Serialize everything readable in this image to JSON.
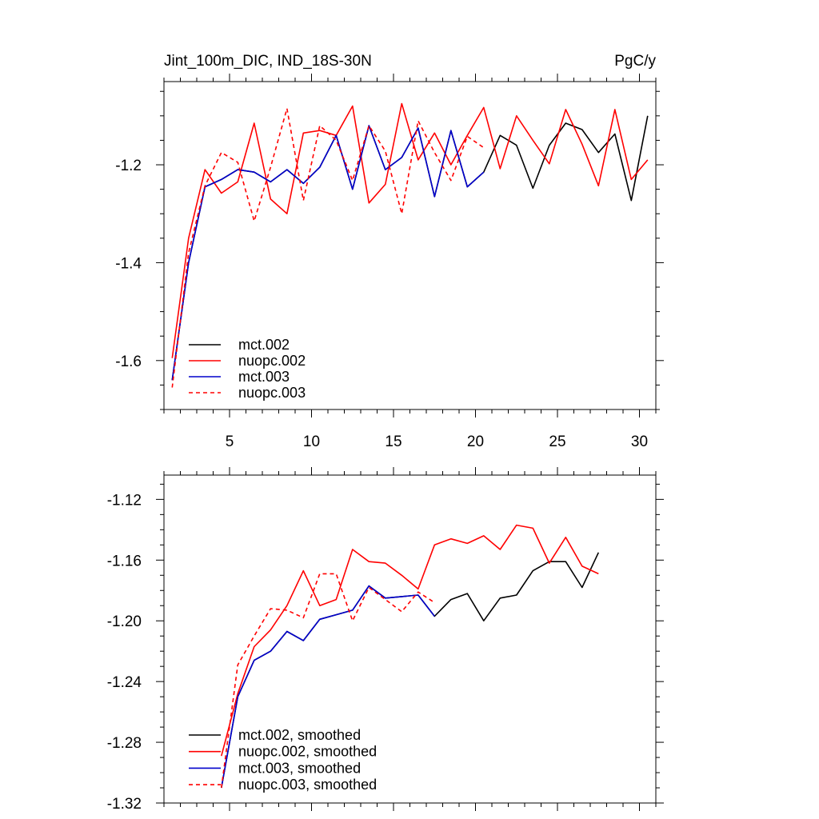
{
  "chart_data": [
    {
      "type": "line",
      "title": "Jint_100m_DIC, IND_18S-30N",
      "units": "PgC/y",
      "xlabel": "",
      "ylabel": "",
      "xlim": [
        1,
        31
      ],
      "ylim": [
        -1.7,
        -1.03
      ],
      "xticks": [
        5,
        10,
        15,
        20,
        25,
        30
      ],
      "xtick_labels": [
        "5",
        "10",
        "15",
        "20",
        "25",
        "30"
      ],
      "yticks": [
        -1.6,
        -1.4,
        -1.2
      ],
      "ytick_labels": [
        "-1.6",
        "-1.4",
        "-1.2"
      ],
      "legend": {
        "position": "bottom-left"
      },
      "series": [
        {
          "name": "mct.002",
          "color": "#000000",
          "dash": "solid",
          "x": [
            1.5,
            2.5,
            3.5,
            4.5,
            5.5,
            6.5,
            7.5,
            8.5,
            9.5,
            10.5,
            11.5,
            12.5,
            13.5,
            14.5,
            15.5,
            16.5,
            17.5,
            18.5,
            19.5,
            20.5,
            21.5,
            22.5,
            23.5,
            24.5,
            25.5,
            26.5,
            27.5,
            28.5,
            29.5,
            30.5
          ],
          "y": [
            -1.64,
            -1.4,
            -1.245,
            -1.23,
            -1.21,
            -1.215,
            -1.235,
            -1.21,
            -1.238,
            -1.205,
            -1.14,
            -1.25,
            -1.12,
            -1.21,
            -1.185,
            -1.125,
            -1.265,
            -1.13,
            -1.245,
            -1.215,
            -1.14,
            -1.16,
            -1.248,
            -1.16,
            -1.115,
            -1.128,
            -1.175,
            -1.137,
            -1.273,
            -1.1
          ]
        },
        {
          "name": "nuopc.002",
          "color": "#ff0000",
          "dash": "solid",
          "x": [
            1.5,
            2.5,
            3.5,
            4.5,
            5.5,
            6.5,
            7.5,
            8.5,
            9.5,
            10.5,
            11.5,
            12.5,
            13.5,
            14.5,
            15.5,
            16.5,
            17.5,
            18.5,
            19.5,
            20.5,
            21.5,
            22.5,
            23.5,
            24.5,
            25.5,
            26.5,
            27.5,
            28.5,
            29.5,
            30.5
          ],
          "y": [
            -1.595,
            -1.35,
            -1.21,
            -1.258,
            -1.235,
            -1.115,
            -1.27,
            -1.3,
            -1.135,
            -1.13,
            -1.14,
            -1.08,
            -1.278,
            -1.24,
            -1.075,
            -1.19,
            -1.135,
            -1.2,
            -1.14,
            -1.083,
            -1.208,
            -1.1,
            -1.15,
            -1.198,
            -1.087,
            -1.158,
            -1.243,
            -1.087,
            -1.23,
            -1.19
          ]
        },
        {
          "name": "mct.003",
          "color": "#0000cc",
          "dash": "solid",
          "x": [
            1.5,
            2.5,
            3.5,
            4.5,
            5.5,
            6.5,
            7.5,
            8.5,
            9.5,
            10.5,
            11.5,
            12.5,
            13.5,
            14.5,
            15.5,
            16.5,
            17.5,
            18.5,
            19.5,
            20.5
          ],
          "y": [
            -1.64,
            -1.4,
            -1.245,
            -1.23,
            -1.21,
            -1.215,
            -1.235,
            -1.21,
            -1.238,
            -1.205,
            -1.14,
            -1.25,
            -1.12,
            -1.21,
            -1.185,
            -1.125,
            -1.265,
            -1.13,
            -1.245,
            -1.215
          ]
        },
        {
          "name": "nuopc.003",
          "color": "#ff0000",
          "dash": "dashed",
          "x": [
            1.5,
            2.5,
            3.5,
            4.5,
            5.5,
            6.5,
            7.5,
            8.5,
            9.5,
            10.5,
            11.5,
            12.5,
            13.5,
            14.5,
            15.5,
            16.5,
            17.5,
            18.5,
            19.5,
            20.5
          ],
          "y": [
            -1.655,
            -1.38,
            -1.243,
            -1.175,
            -1.195,
            -1.315,
            -1.205,
            -1.085,
            -1.273,
            -1.12,
            -1.15,
            -1.232,
            -1.12,
            -1.172,
            -1.3,
            -1.11,
            -1.175,
            -1.232,
            -1.142,
            -1.165
          ]
        }
      ]
    },
    {
      "type": "line",
      "title": "",
      "xlabel": "",
      "ylabel": "",
      "xlim": [
        1,
        31
      ],
      "ylim": [
        -1.32,
        -1.104
      ],
      "xticks": [
        5,
        10,
        15,
        20,
        25,
        30
      ],
      "yticks": [
        -1.32,
        -1.28,
        -1.24,
        -1.2,
        -1.16,
        -1.12
      ],
      "ytick_labels": [
        "-1.32",
        "-1.28",
        "-1.24",
        "-1.20",
        "-1.16",
        "-1.12"
      ],
      "legend": {
        "position": "bottom-left"
      },
      "series": [
        {
          "name": "mct.002, smoothed",
          "color": "#000000",
          "dash": "solid",
          "x": [
            4.5,
            5.5,
            6.5,
            7.5,
            8.5,
            9.5,
            10.5,
            11.5,
            12.5,
            13.5,
            14.5,
            15.5,
            16.5,
            17.5,
            18.5,
            19.5,
            20.5,
            21.5,
            22.5,
            23.5,
            24.5,
            25.5,
            26.5,
            27.5
          ],
          "y": [
            -1.31,
            -1.25,
            -1.226,
            -1.22,
            -1.207,
            -1.213,
            -1.199,
            -1.196,
            -1.193,
            -1.177,
            -1.185,
            -1.184,
            -1.183,
            -1.197,
            -1.186,
            -1.182,
            -1.2,
            -1.185,
            -1.183,
            -1.167,
            -1.161,
            -1.161,
            -1.178,
            -1.155
          ]
        },
        {
          "name": "nuopc.002, smoothed",
          "color": "#ff0000",
          "dash": "solid",
          "x": [
            4.5,
            5.5,
            6.5,
            7.5,
            8.5,
            9.5,
            10.5,
            11.5,
            12.5,
            13.5,
            14.5,
            15.5,
            16.5,
            17.5,
            18.5,
            19.5,
            20.5,
            21.5,
            22.5,
            23.5,
            24.5,
            25.5,
            26.5,
            27.5
          ],
          "y": [
            -1.289,
            -1.248,
            -1.217,
            -1.206,
            -1.19,
            -1.167,
            -1.19,
            -1.186,
            -1.153,
            -1.161,
            -1.162,
            -1.17,
            -1.179,
            -1.15,
            -1.146,
            -1.149,
            -1.144,
            -1.153,
            -1.137,
            -1.139,
            -1.162,
            -1.145,
            -1.164,
            -1.169
          ]
        },
        {
          "name": "mct.003, smoothed",
          "color": "#0000cc",
          "dash": "solid",
          "x": [
            4.5,
            5.5,
            6.5,
            7.5,
            8.5,
            9.5,
            10.5,
            11.5,
            12.5,
            13.5,
            14.5,
            15.5,
            16.5,
            17.5
          ],
          "y": [
            -1.31,
            -1.25,
            -1.226,
            -1.22,
            -1.207,
            -1.213,
            -1.199,
            -1.196,
            -1.193,
            -1.177,
            -1.185,
            -1.184,
            -1.183,
            -1.197
          ]
        },
        {
          "name": "nuopc.003, smoothed",
          "color": "#ff0000",
          "dash": "dashed",
          "x": [
            4.5,
            5.5,
            6.5,
            7.5,
            8.5,
            9.5,
            10.5,
            11.5,
            12.5,
            13.5,
            14.5,
            15.5,
            16.5,
            17.5
          ],
          "y": [
            -1.31,
            -1.229,
            -1.21,
            -1.192,
            -1.193,
            -1.198,
            -1.169,
            -1.169,
            -1.2,
            -1.178,
            -1.186,
            -1.194,
            -1.181,
            -1.188
          ]
        }
      ]
    }
  ]
}
